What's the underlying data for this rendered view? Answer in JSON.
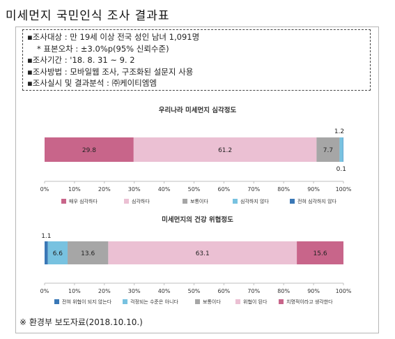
{
  "header": {
    "title": "미세먼지 국민인식 조사 결과표"
  },
  "survey": {
    "lines": [
      "▪조사대상 : 만 19세 이상 전국 성인 남녀 1,091명",
      "* 표본오차 : ±3.0%p(95% 신뢰수준)",
      "▪조사기간 : '18. 8. 31 ~ 9. 2",
      "▪조사방법 : 모바일웹 조사, 구조화된 설문지 사용",
      "▪조사실시 및 결과분석 : ㈜케이티엠엠"
    ]
  },
  "footer": {
    "source": "※ 환경부 보도자료(2018.10.10.)"
  },
  "chart_data": [
    {
      "type": "bar",
      "orientation": "horizontal",
      "stacked": true,
      "title": "우리나라 미세먼지 심각정도",
      "xlim": [
        0,
        100
      ],
      "x_ticks": [
        "0%",
        "10%",
        "20%",
        "30%",
        "40%",
        "50%",
        "60%",
        "70%",
        "80%",
        "90%",
        "100%"
      ],
      "grid": false,
      "legend_position": "bottom",
      "segments": [
        {
          "name": "매우 심각하다",
          "value": 29.8,
          "label": "29.8",
          "color": "#c8658a"
        },
        {
          "name": "심각하다",
          "value": 61.2,
          "label": "61.2",
          "color": "#ebc0d3"
        },
        {
          "name": "보통이다",
          "value": 7.7,
          "label": "7.7",
          "color": "#a6a6a6"
        },
        {
          "name": "심각하지 않다",
          "value": 1.2,
          "label": "1.2",
          "color": "#78c2e0"
        },
        {
          "name": "전혀 심각하지 않다",
          "value": 0.1,
          "label": "0.1",
          "color": "#3a78b6"
        }
      ]
    },
    {
      "type": "bar",
      "orientation": "horizontal",
      "stacked": true,
      "title": "미세먼지의 건강 위협정도",
      "xlim": [
        0,
        100
      ],
      "x_ticks": [
        "0%",
        "10%",
        "20%",
        "30%",
        "40%",
        "50%",
        "60%",
        "70%",
        "80%",
        "90%",
        "100%"
      ],
      "grid": false,
      "legend_position": "bottom",
      "segments": [
        {
          "name": "전혀 위협이 되지 않는다",
          "value": 1.1,
          "label": "1.1",
          "color": "#3a78b6"
        },
        {
          "name": "걱정되는 수준은 아니다",
          "value": 6.6,
          "label": "6.6",
          "color": "#78c2e0"
        },
        {
          "name": "보통이다",
          "value": 13.6,
          "label": "13.6",
          "color": "#a6a6a6"
        },
        {
          "name": "위협이 된다",
          "value": 63.1,
          "label": "63.1",
          "color": "#ebc0d3"
        },
        {
          "name": "치명적이라고 생각한다",
          "value": 15.6,
          "label": "15.6",
          "color": "#c8658a"
        }
      ]
    }
  ]
}
